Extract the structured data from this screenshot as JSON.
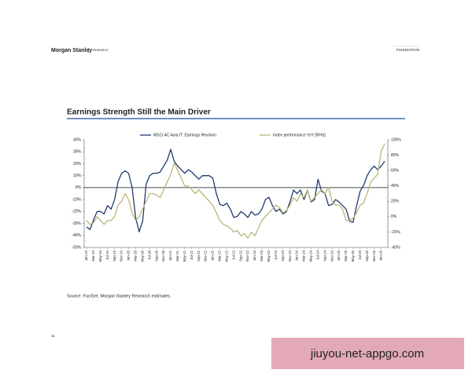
{
  "header": {
    "brand": "Morgan Stanley",
    "division": "RESEARCH",
    "right_label": "FOUNDATION"
  },
  "chart_data": {
    "type": "line",
    "title": "Earnings Strength Still the Main Driver",
    "categories": [
      "Jan-19",
      null,
      "Mar-19",
      null,
      "May-19",
      null,
      "Jul-19",
      null,
      "Sep-19",
      null,
      "Nov-19",
      null,
      "Jan-20",
      null,
      "Mar-20",
      null,
      "May-20",
      null,
      "Jul-20",
      null,
      "Sep-20",
      null,
      "Nov-20",
      null,
      "Jan-21",
      null,
      "Mar-21",
      null,
      "May-21",
      null,
      "Jul-21",
      null,
      "Sep-21",
      null,
      "Nov-21",
      null,
      "Jan-22",
      null,
      "Mar-22",
      null,
      "May-22",
      null,
      "Jul-22",
      null,
      "Sep-22",
      null,
      "Nov-22",
      null,
      "Jan-23",
      null,
      "Mar-23",
      null,
      "May-23",
      null,
      "Jul-23",
      null,
      "Sep-23",
      null,
      "Nov-23",
      null,
      "Jan-24",
      null,
      "Mar-24",
      null,
      "May-24",
      null,
      "Jul-24",
      null,
      "Sep-24",
      null,
      "Nov-24",
      null,
      "Jan-25",
      null,
      "Mar-25",
      null,
      "May-25",
      null,
      "Jul-25",
      null,
      "Sep-25",
      null,
      "Nov-25",
      null,
      "Jan-26",
      null
    ],
    "series": [
      {
        "name": "MSCI AC Asia IT: Earnings Revision",
        "color": "#1f3b6e",
        "axis": "y",
        "values": [
          -33,
          -35,
          -27,
          -20,
          -20,
          -22,
          -15,
          -18,
          -10,
          5,
          12,
          14,
          12,
          0,
          -25,
          -37,
          -28,
          3,
          10,
          12,
          12,
          13,
          18,
          23,
          32,
          22,
          18,
          15,
          12,
          15,
          13,
          10,
          7,
          10,
          10,
          10,
          8,
          -5,
          -14,
          -15,
          -13,
          -18,
          -25,
          -24,
          -20,
          -22,
          -25,
          -20,
          -23,
          -22,
          -18,
          -10,
          -8,
          -15,
          -20,
          -18,
          -22,
          -20,
          -12,
          -2,
          -5,
          -2,
          -10,
          -2,
          -12,
          -10,
          7,
          -3,
          -5,
          -15,
          -14,
          -10,
          -12,
          -15,
          -18,
          -28,
          -29,
          -15,
          -3,
          2,
          10,
          15,
          18,
          15,
          18,
          22
        ]
      },
      {
        "name": "Index performance YoY [RHS]",
        "color": "#b8b87a",
        "axis": "y2",
        "values": [
          -5,
          -10,
          -8,
          0,
          -5,
          -10,
          -5,
          -5,
          0,
          15,
          20,
          30,
          22,
          5,
          -5,
          0,
          10,
          20,
          30,
          30,
          28,
          25,
          35,
          45,
          55,
          70,
          60,
          50,
          40,
          40,
          35,
          30,
          35,
          30,
          25,
          20,
          15,
          5,
          -5,
          -10,
          -12,
          -15,
          -20,
          -18,
          -25,
          -22,
          -28,
          -20,
          -25,
          -15,
          -5,
          0,
          5,
          10,
          15,
          12,
          5,
          8,
          15,
          25,
          20,
          30,
          25,
          35,
          20,
          25,
          30,
          35,
          30,
          38,
          20,
          15,
          15,
          10,
          -5,
          -5,
          -2,
          5,
          15,
          18,
          30,
          45,
          50,
          55,
          85,
          95
        ]
      }
    ],
    "ylim": [
      -50,
      40
    ],
    "yticks": [
      {
        "value": 40,
        "label": "40%"
      },
      {
        "value": 30,
        "label": "30%"
      },
      {
        "value": 20,
        "label": "20%"
      },
      {
        "value": 10,
        "label": "10%"
      },
      {
        "value": 0,
        "label": "0%"
      },
      {
        "value": -10,
        "label": "-10%"
      },
      {
        "value": -20,
        "label": "-20%"
      },
      {
        "value": -30,
        "label": "-30%"
      },
      {
        "value": -40,
        "label": "-40%"
      },
      {
        "value": -50,
        "label": "-50%"
      }
    ],
    "y2lim": [
      -40,
      100
    ],
    "y2ticks": [
      {
        "value": 100,
        "label": "100%"
      },
      {
        "value": 80,
        "label": "80%"
      },
      {
        "value": 60,
        "label": "60%"
      },
      {
        "value": 40,
        "label": "40%"
      },
      {
        "value": 20,
        "label": "20%"
      },
      {
        "value": 0,
        "label": "0%"
      },
      {
        "value": -20,
        "label": "-20%"
      },
      {
        "value": -40,
        "label": "-40%"
      }
    ],
    "grid": false
  },
  "source": "Source: FactSet, Morgan Stanley Research estimates.",
  "page_number": "11",
  "watermark": "jiuyou-net-appgo.com"
}
